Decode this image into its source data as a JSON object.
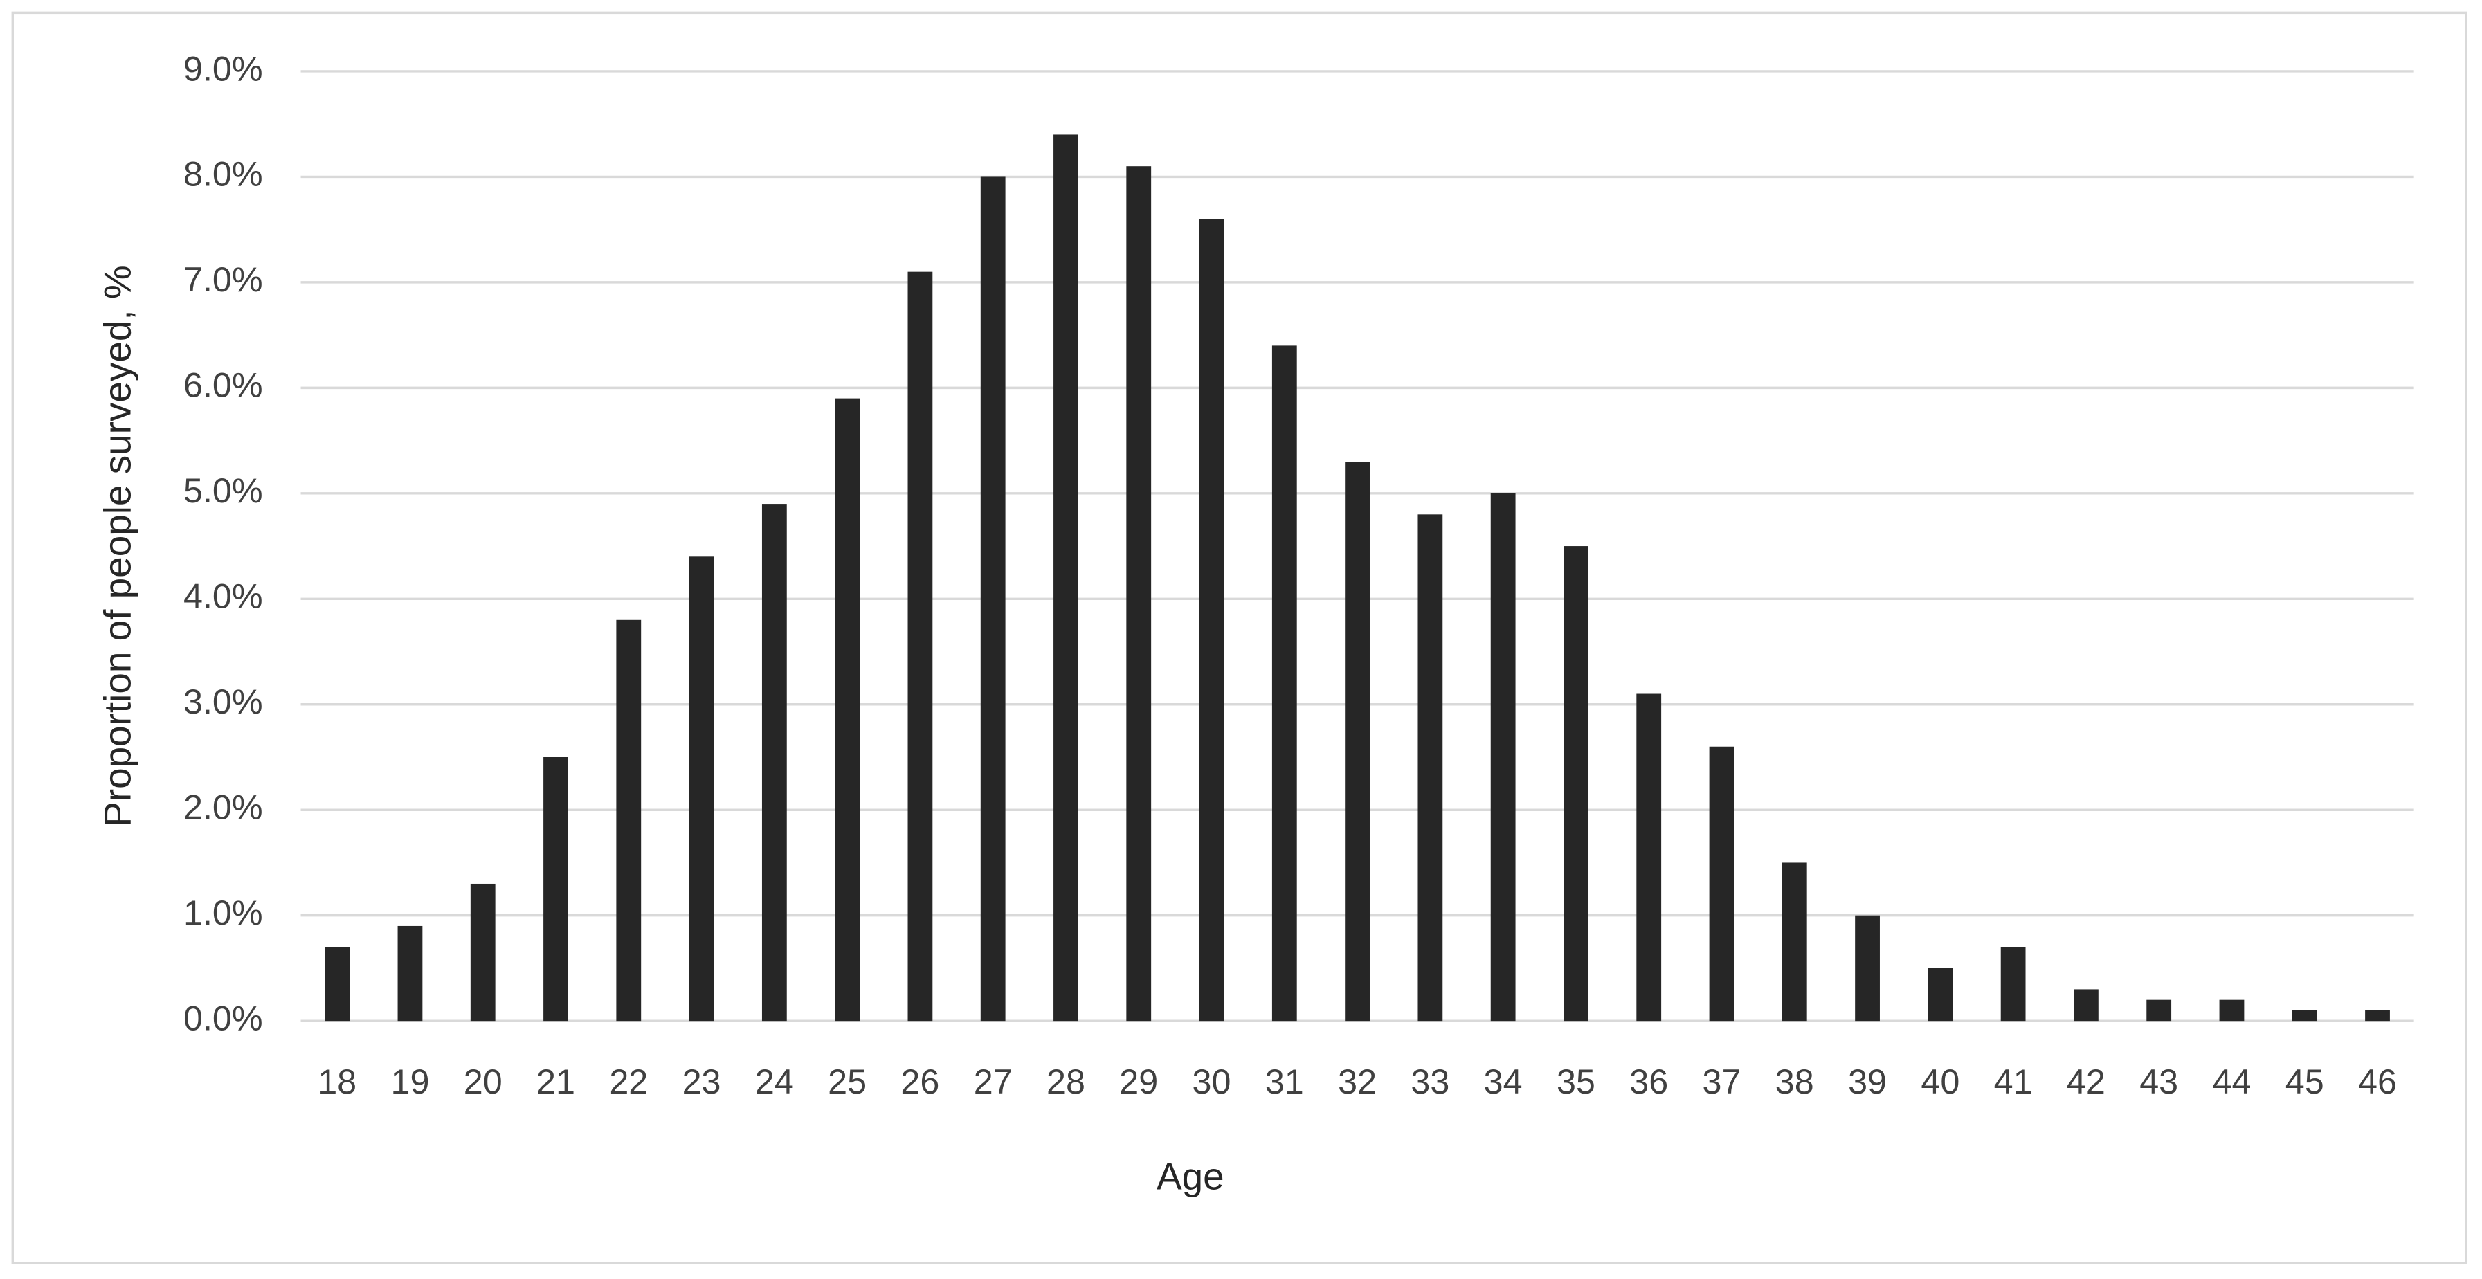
{
  "chart_data": {
    "type": "bar",
    "x_label": "Age",
    "y_label": "Proportion of people surveyed, %",
    "categories": [
      "18",
      "19",
      "20",
      "21",
      "22",
      "23",
      "24",
      "25",
      "26",
      "27",
      "28",
      "29",
      "30",
      "31",
      "32",
      "33",
      "34",
      "35",
      "36",
      "37",
      "38",
      "39",
      "40",
      "41",
      "42",
      "43",
      "44",
      "45",
      "46"
    ],
    "values": [
      0.7,
      0.9,
      1.3,
      2.5,
      3.8,
      4.4,
      4.9,
      5.9,
      7.1,
      8.0,
      8.4,
      8.1,
      7.6,
      6.4,
      5.3,
      4.8,
      5.0,
      4.5,
      3.1,
      2.6,
      1.5,
      1.0,
      0.5,
      0.7,
      0.3,
      0.2,
      0.2,
      0.1,
      0.1
    ],
    "color": "#262626",
    "ylim": [
      0,
      9
    ],
    "yticks": [
      {
        "value": 0,
        "label": "0.0%"
      },
      {
        "value": 1,
        "label": "1.0%"
      },
      {
        "value": 2,
        "label": "2.0%"
      },
      {
        "value": 3,
        "label": "3.0%"
      },
      {
        "value": 4,
        "label": "4.0%"
      },
      {
        "value": 5,
        "label": "5.0%"
      },
      {
        "value": 6,
        "label": "6.0%"
      },
      {
        "value": 7,
        "label": "7.0%"
      },
      {
        "value": 8,
        "label": "8.0%"
      },
      {
        "value": 9,
        "label": "9.0%"
      }
    ],
    "grid": true
  }
}
